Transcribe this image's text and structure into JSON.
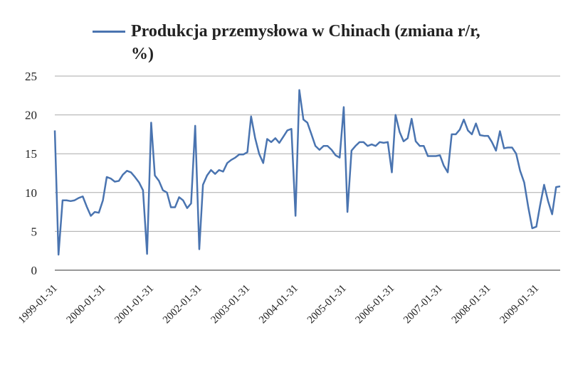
{
  "chart_data": {
    "type": "line",
    "series": [
      {
        "name": "Produkcja przemysłowa w Chinach (zmiana r/r, %)",
        "color": "#4a74b0",
        "values": [
          18,
          2,
          9,
          9,
          8.9,
          9,
          9.3,
          9.5,
          8.2,
          7,
          7.5,
          7.4,
          9,
          12,
          11.8,
          11.4,
          11.5,
          12.3,
          12.8,
          12.6,
          12,
          11.3,
          10.3,
          2.1,
          19,
          12.2,
          11.5,
          10.3,
          10,
          8.1,
          8.1,
          9.4,
          9,
          8,
          8.6,
          18.6,
          2.7,
          11,
          12.2,
          12.9,
          12.4,
          12.9,
          12.7,
          13.8,
          14.2,
          14.5,
          14.9,
          14.9,
          15.2,
          19.8,
          17,
          15,
          13.8,
          16.9,
          16.5,
          17,
          16.4,
          17.2,
          18,
          18.2,
          7,
          23.2,
          19.4,
          19,
          17.5,
          16,
          15.5,
          16,
          16,
          15.5,
          14.8,
          14.5,
          21,
          7.5,
          15.4,
          16,
          16.5,
          16.5,
          16,
          16.2,
          16,
          16.5,
          16.4,
          16.5,
          12.6,
          20,
          17.8,
          16.6,
          17,
          19.5,
          16.6,
          16,
          16,
          14.7,
          14.7,
          14.7,
          14.8,
          13.5,
          12.6,
          17.5,
          17.5,
          18.1,
          19.4,
          18,
          17.5,
          18.9,
          17.4,
          17.3,
          17.3,
          16.5,
          15.4,
          17.9,
          15.7,
          15.8,
          15.8,
          15,
          12.8,
          11.3,
          8.2,
          5.4,
          5.6,
          8.3,
          11,
          8.9,
          7.2,
          10.7,
          10.8
        ]
      }
    ],
    "x": [
      "1999-01-31",
      "1999-02-28",
      "1999-03-31",
      "1999-04-30",
      "1999-05-31",
      "1999-06-30",
      "1999-07-31",
      "1999-08-31",
      "1999-09-30",
      "1999-10-31",
      "1999-11-30",
      "1999-12-31",
      "2000-01-31",
      "2000-02-29",
      "2000-03-31",
      "2000-04-30",
      "2000-05-31",
      "2000-06-30",
      "2000-07-31",
      "2000-08-31",
      "2000-09-30",
      "2000-10-31",
      "2000-11-30",
      "2000-12-31",
      "2001-01-31",
      "2001-02-28",
      "2001-03-31",
      "2001-04-30",
      "2001-05-31",
      "2001-06-30",
      "2001-07-31",
      "2001-08-31",
      "2001-09-30",
      "2001-10-31",
      "2001-11-30",
      "2001-12-31",
      "2002-01-31",
      "2002-02-28",
      "2002-03-31",
      "2002-04-30",
      "2002-05-31",
      "2002-06-30",
      "2002-07-31",
      "2002-08-31",
      "2002-09-30",
      "2002-10-31",
      "2002-11-30",
      "2002-12-31",
      "2003-01-31",
      "2003-02-28",
      "2003-03-31",
      "2003-04-30",
      "2003-05-31",
      "2003-06-30",
      "2003-07-31",
      "2003-08-31",
      "2003-09-30",
      "2003-10-31",
      "2003-11-30",
      "2003-12-31",
      "2004-01-31",
      "2004-02-29",
      "2004-03-31",
      "2004-04-30",
      "2004-05-31",
      "2004-06-30",
      "2004-07-31",
      "2004-08-31",
      "2004-09-30",
      "2004-10-31",
      "2004-11-30",
      "2004-12-31",
      "2005-01-31",
      "2005-02-28",
      "2005-03-31",
      "2005-04-30",
      "2005-05-31",
      "2005-06-30",
      "2005-07-31",
      "2005-08-31",
      "2005-09-30",
      "2005-10-31",
      "2005-11-30",
      "2005-12-31",
      "2006-01-31",
      "2006-02-28",
      "2006-03-31",
      "2006-04-30",
      "2006-05-31",
      "2006-06-30",
      "2006-07-31",
      "2006-08-31",
      "2006-09-30",
      "2006-10-31",
      "2006-11-30",
      "2006-12-31",
      "2007-01-31",
      "2007-02-28",
      "2007-03-31",
      "2007-04-30",
      "2007-05-31",
      "2007-06-30",
      "2007-07-31",
      "2007-08-31",
      "2007-09-30",
      "2007-10-31",
      "2007-11-30",
      "2007-12-31",
      "2008-01-31",
      "2008-02-29",
      "2008-03-31",
      "2008-04-30",
      "2008-05-31",
      "2008-06-30",
      "2008-07-31",
      "2008-08-31",
      "2008-09-30",
      "2008-10-31",
      "2008-11-30",
      "2008-12-31",
      "2009-01-31",
      "2009-02-28",
      "2009-03-31",
      "2009-04-30",
      "2009-05-31",
      "2009-06-30",
      "2009-07-31"
    ],
    "xticks": [
      "1999-01-31",
      "2000-01-31",
      "2001-01-31",
      "2002-01-31",
      "2003-01-31",
      "2004-01-31",
      "2005-01-31",
      "2006-01-31",
      "2007-01-31",
      "2008-01-31",
      "2009-01-31"
    ],
    "ylim": [
      0,
      25
    ],
    "yticks": [
      0,
      5,
      10,
      15,
      20,
      25
    ],
    "grid": true,
    "legend": "top"
  }
}
